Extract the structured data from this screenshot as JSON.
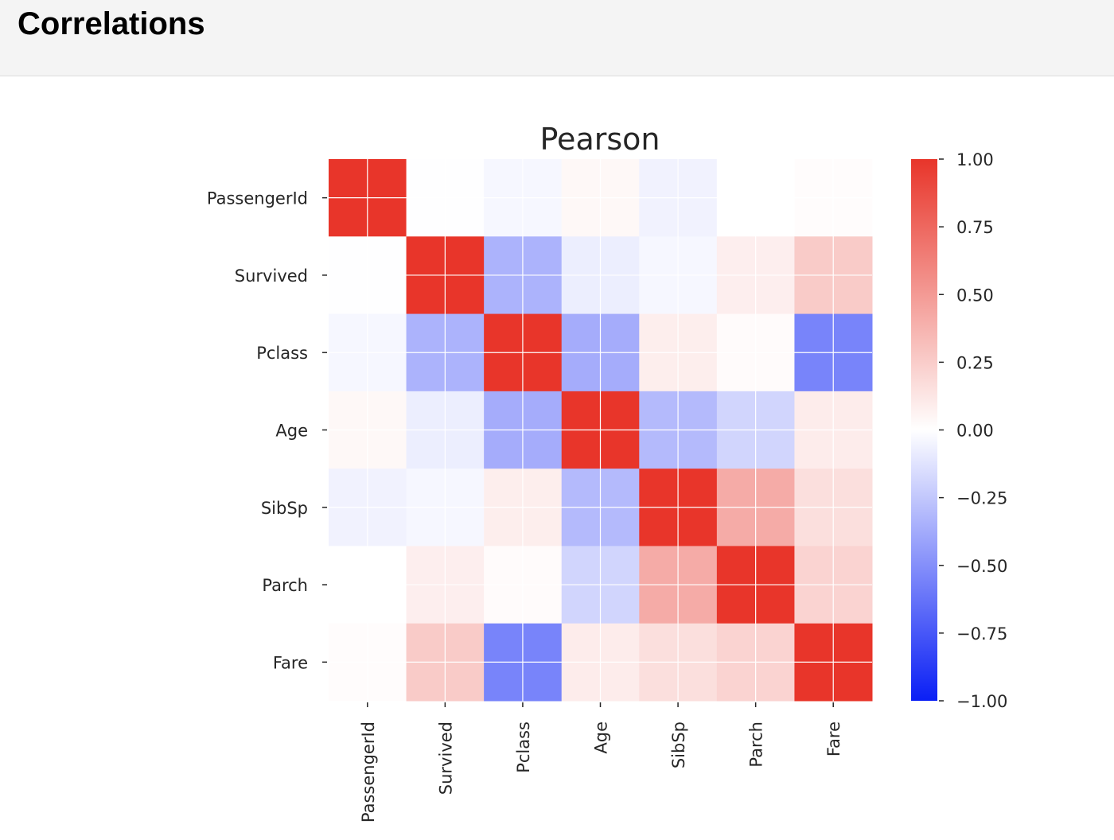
{
  "header": {
    "title": "Correlations"
  },
  "chart_data": {
    "type": "heatmap",
    "title": "Pearson",
    "variables": [
      "PassengerId",
      "Survived",
      "Pclass",
      "Age",
      "SibSp",
      "Parch",
      "Fare"
    ],
    "matrix": [
      [
        1.0,
        -0.005,
        -0.035,
        0.037,
        -0.058,
        -0.002,
        0.013
      ],
      [
        -0.005,
        1.0,
        -0.338,
        -0.077,
        -0.035,
        0.082,
        0.257
      ],
      [
        -0.035,
        -0.338,
        1.0,
        -0.369,
        0.083,
        0.018,
        -0.549
      ],
      [
        0.037,
        -0.077,
        -0.369,
        1.0,
        -0.308,
        -0.189,
        0.096
      ],
      [
        -0.058,
        -0.035,
        0.083,
        -0.308,
        1.0,
        0.415,
        0.16
      ],
      [
        -0.002,
        0.082,
        0.018,
        -0.189,
        0.415,
        1.0,
        0.216
      ],
      [
        0.013,
        0.257,
        -0.549,
        0.096,
        0.16,
        0.216,
        1.0
      ]
    ],
    "colorbar": {
      "range": [
        -1,
        1
      ],
      "ticks": [
        "1.00",
        "0.75",
        "0.50",
        "0.25",
        "0.00",
        "−0.25",
        "−0.50",
        "−0.75",
        "−1.00"
      ],
      "tick_values": [
        1,
        0.75,
        0.5,
        0.25,
        0,
        -0.25,
        -0.5,
        -0.75,
        -1
      ]
    },
    "colormap": {
      "low": "#0a1ff5",
      "mid": "#ffffff",
      "high": "#e8352a"
    },
    "grid": true
  }
}
